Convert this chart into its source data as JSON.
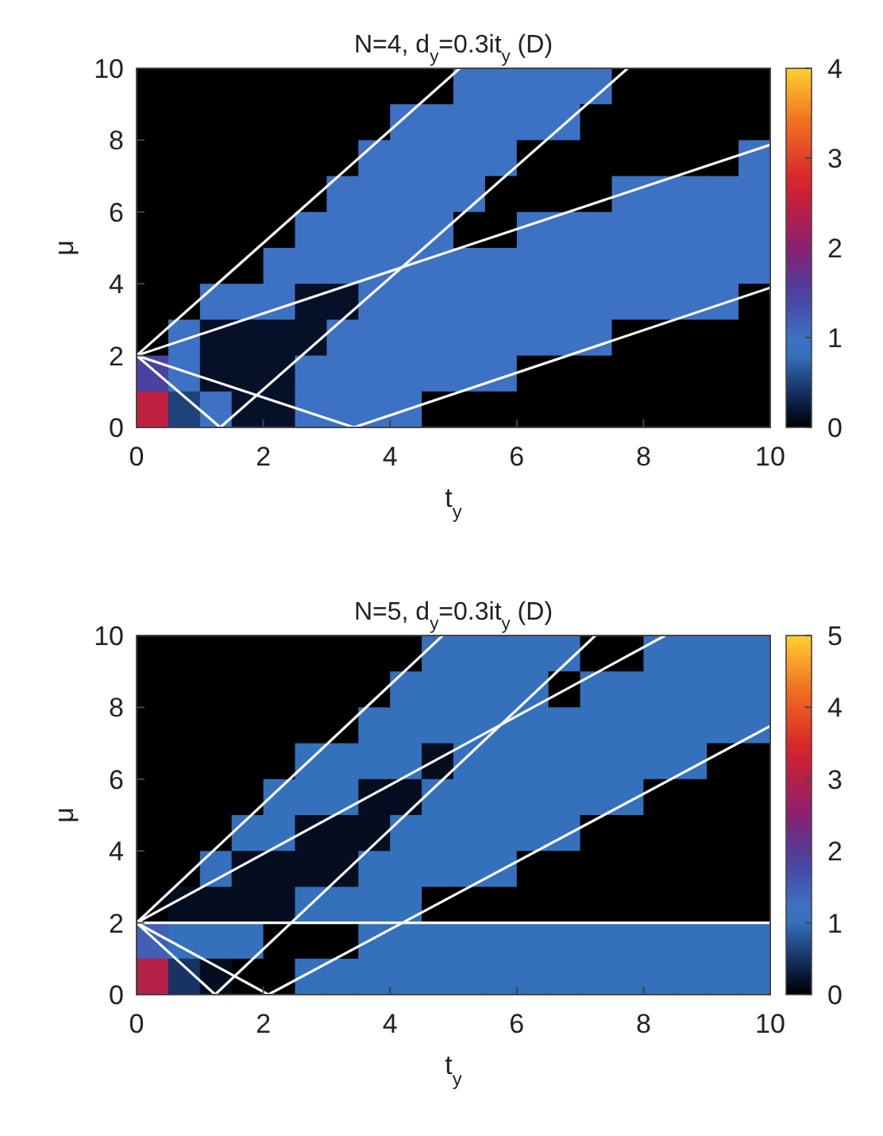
{
  "chart_data": [
    {
      "type": "heatmap",
      "title": "N=4, d$_{y}$=0.3it$_{y}$ (D)",
      "xlabel": "t$_{y}$",
      "ylabel": "μ",
      "xlim": [
        0,
        10
      ],
      "ylim": [
        0,
        10
      ],
      "xticks": [
        0,
        2,
        4,
        6,
        8,
        10
      ],
      "yticks": [
        0,
        2,
        4,
        6,
        8,
        10
      ],
      "clim": [
        0,
        4
      ],
      "cticks": [
        0,
        1,
        2,
        3,
        4
      ],
      "cells": [
        [
          0,
          0,
          0,
          0,
          0,
          0,
          0,
          0,
          0,
          0,
          1,
          1,
          1,
          1,
          1,
          0,
          0,
          0,
          0,
          0
        ],
        [
          0,
          0,
          0,
          0,
          0,
          0,
          0,
          0,
          1,
          1,
          1,
          1,
          1,
          1,
          0,
          0,
          0,
          0,
          0,
          0
        ],
        [
          0,
          0,
          0,
          0,
          0,
          0,
          0,
          1,
          1,
          1,
          1,
          1,
          0,
          0,
          0,
          0,
          0,
          0,
          0,
          1
        ],
        [
          0,
          0,
          0,
          0,
          0,
          0,
          1,
          1,
          1,
          1,
          1,
          0,
          0,
          0,
          0,
          1,
          1,
          1,
          1,
          1
        ],
        [
          0,
          0,
          0,
          0,
          0,
          1,
          1,
          1,
          1,
          1,
          0,
          0,
          1,
          1,
          1,
          1,
          1,
          1,
          1,
          1
        ],
        [
          0,
          0,
          0,
          0,
          1,
          1,
          1,
          1,
          1,
          1,
          1,
          1,
          1,
          1,
          1,
          1,
          1,
          1,
          1,
          1
        ],
        [
          0,
          0,
          1,
          1,
          1,
          0.15,
          0.15,
          1,
          1,
          1,
          1,
          1,
          1,
          1,
          1,
          1,
          1,
          1,
          1,
          0
        ],
        [
          0,
          1,
          0.15,
          0.15,
          0.15,
          0.15,
          1,
          1,
          1,
          1,
          1,
          1,
          1,
          1,
          1,
          0,
          0,
          0,
          0,
          0
        ],
        [
          1.5,
          1,
          0.15,
          0.15,
          0.15,
          1,
          1,
          1,
          1,
          1,
          1,
          1,
          0,
          0,
          0,
          0,
          0,
          0,
          0,
          0
        ],
        [
          2.5,
          0.5,
          1,
          0.15,
          0.15,
          1,
          1,
          1,
          1,
          0,
          0,
          0,
          0,
          0,
          0,
          0,
          0,
          0,
          0,
          0
        ]
      ],
      "series": [
        {
          "type": "line",
          "color": "#ffffff",
          "x": [
            0,
            5.1
          ],
          "values": [
            2,
            10
          ]
        },
        {
          "type": "line",
          "color": "#ffffff",
          "x": [
            1.32,
            7.75
          ],
          "values": [
            0,
            10
          ]
        },
        {
          "type": "line",
          "color": "#ffffff",
          "x": [
            0,
            10
          ],
          "values": [
            2,
            7.87
          ]
        },
        {
          "type": "line",
          "color": "#ffffff",
          "x": [
            3.43,
            10
          ],
          "values": [
            0,
            3.89
          ]
        },
        {
          "type": "line",
          "color": "#ffffff",
          "x": [
            0,
            1.32
          ],
          "values": [
            2,
            0
          ]
        },
        {
          "type": "line",
          "color": "#ffffff",
          "x": [
            0,
            3.43
          ],
          "values": [
            2,
            0
          ]
        }
      ]
    },
    {
      "type": "heatmap",
      "title": "N=5, d$_{y}$=0.3it$_{y}$ (D)",
      "xlabel": "t$_{y}$",
      "ylabel": "μ",
      "xlim": [
        0,
        10
      ],
      "ylim": [
        0,
        10
      ],
      "xticks": [
        0,
        2,
        4,
        6,
        8,
        10
      ],
      "yticks": [
        0,
        2,
        4,
        6,
        8,
        10
      ],
      "clim": [
        0,
        5
      ],
      "cticks": [
        0,
        1,
        2,
        3,
        4,
        5
      ],
      "cells": [
        [
          0,
          0,
          0,
          0,
          0,
          0,
          0,
          0,
          0,
          1,
          1,
          1,
          1,
          1,
          0,
          0,
          1,
          1,
          1,
          1
        ],
        [
          0,
          0,
          0,
          0,
          0,
          0,
          0,
          0,
          1,
          1,
          1,
          1,
          1,
          0,
          1,
          1,
          1,
          1,
          1,
          1
        ],
        [
          0,
          0,
          0,
          0,
          0,
          0,
          0,
          1,
          1,
          1,
          1,
          1,
          1,
          1,
          1,
          1,
          1,
          1,
          1,
          1
        ],
        [
          0,
          0,
          0,
          0,
          0,
          1,
          1,
          1,
          1,
          0.15,
          1,
          1,
          1,
          1,
          1,
          1,
          1,
          1,
          0,
          0
        ],
        [
          0,
          0,
          0,
          0,
          1,
          1,
          1,
          0.15,
          0.15,
          1,
          1,
          1,
          1,
          1,
          1,
          1,
          0,
          0,
          0,
          0
        ],
        [
          0,
          0,
          0,
          1,
          1,
          0.15,
          0.15,
          0.15,
          1,
          1,
          1,
          1,
          1,
          1,
          0,
          0,
          0,
          0,
          0,
          0
        ],
        [
          0,
          0,
          1,
          0.15,
          0.15,
          0.15,
          0.15,
          1,
          1,
          1,
          1,
          1,
          0,
          0,
          0,
          0,
          0,
          0,
          0,
          0
        ],
        [
          0,
          0.15,
          0.15,
          0.15,
          0.15,
          1,
          1,
          1,
          1,
          0,
          0,
          0,
          0,
          0,
          0,
          0,
          0,
          0,
          0,
          0
        ],
        [
          1.5,
          1,
          1,
          1,
          0,
          0,
          0,
          1,
          1,
          1,
          1,
          1,
          1,
          1,
          1,
          1,
          1,
          1,
          1,
          1
        ],
        [
          3,
          0.5,
          0.15,
          0,
          0,
          1,
          1,
          1,
          1,
          1,
          1,
          1,
          1,
          1,
          1,
          1,
          1,
          1,
          1,
          1
        ]
      ],
      "series": [
        {
          "type": "line",
          "color": "#ffffff",
          "x": [
            0,
            4.83
          ],
          "values": [
            2,
            10
          ]
        },
        {
          "type": "line",
          "color": "#ffffff",
          "x": [
            1.24,
            7.24
          ],
          "values": [
            0,
            10
          ]
        },
        {
          "type": "line",
          "color": "#ffffff",
          "x": [
            0,
            8.34
          ],
          "values": [
            2,
            10
          ]
        },
        {
          "type": "line",
          "color": "#ffffff",
          "x": [
            2.08,
            10
          ],
          "values": [
            0,
            7.48
          ]
        },
        {
          "type": "line",
          "color": "#ffffff",
          "x": [
            0,
            10
          ],
          "values": [
            2,
            2
          ]
        },
        {
          "type": "line",
          "color": "#ffffff",
          "x": [
            0,
            1.24
          ],
          "values": [
            2,
            0
          ]
        },
        {
          "type": "line",
          "color": "#ffffff",
          "x": [
            0,
            2.08
          ],
          "values": [
            2,
            0
          ]
        }
      ]
    }
  ]
}
